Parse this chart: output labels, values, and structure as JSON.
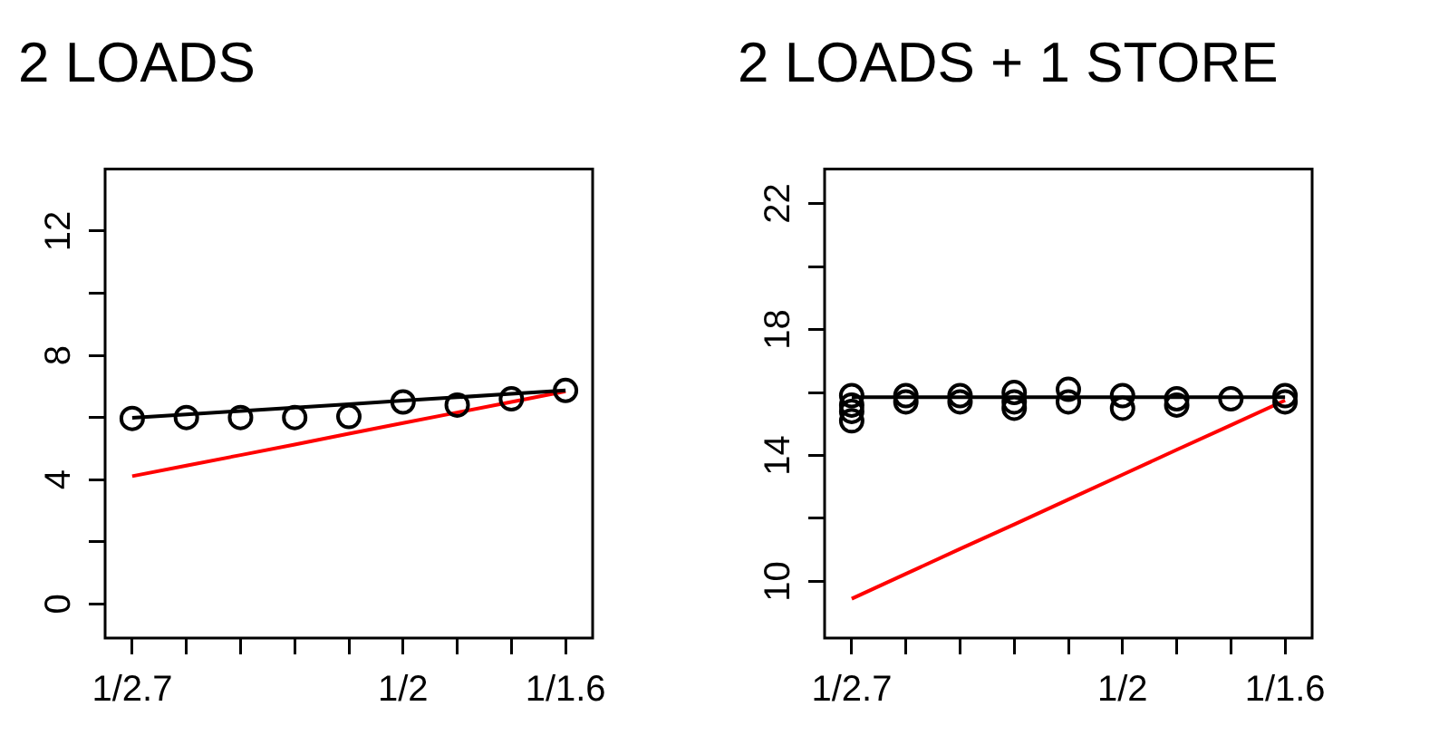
{
  "chart_data": [
    {
      "type": "scatter",
      "title": "2 LOADS",
      "categories": [
        "1/2.7",
        null,
        null,
        null,
        null,
        "1/2",
        null,
        null,
        "1/1.6"
      ],
      "ylim": [
        -1.1,
        14
      ],
      "marker": "circle",
      "legend": false,
      "grid": false,
      "yticks": [
        0,
        {
          "value": 2,
          "label": null
        },
        4,
        {
          "value": 6,
          "label": null
        },
        8,
        {
          "value": 10,
          "label": null
        },
        12
      ],
      "series": [
        {
          "type": "scatter",
          "color": "#000000",
          "values": [
            5.97,
            6.0,
            6.0,
            6.0,
            6.03,
            6.5,
            6.4,
            6.6,
            6.87
          ]
        },
        {
          "type": "line",
          "marker": "none",
          "color": "#000000",
          "values": [
            5.99,
            6.1,
            6.21,
            6.32,
            6.43,
            6.54,
            6.65,
            6.76,
            6.87
          ]
        },
        {
          "type": "line",
          "marker": "none",
          "color": "#ff0000",
          "values": [
            4.11,
            4.45,
            4.79,
            5.13,
            5.48,
            5.82,
            6.16,
            6.5,
            6.84
          ]
        }
      ]
    },
    {
      "type": "scatter",
      "title": "2 LOADS + 1 STORE",
      "categories": [
        "1/2.7",
        null,
        null,
        null,
        null,
        "1/2",
        null,
        null,
        "1/1.6"
      ],
      "ylim": [
        8.2,
        23.1
      ],
      "marker": "circle",
      "legend": false,
      "grid": false,
      "yticks": [
        10,
        {
          "value": 12,
          "label": null
        },
        14,
        {
          "value": 16,
          "label": null
        },
        18,
        {
          "value": 20,
          "label": null
        },
        22
      ],
      "series": [
        {
          "type": "scatter",
          "color": "#000000",
          "values": [
            15.9,
            15.9,
            15.9,
            16.0,
            16.1,
            15.9,
            15.8,
            15.8,
            15.9
          ]
        },
        {
          "type": "scatter",
          "color": "#000000",
          "values": [
            15.6,
            15.7,
            15.7,
            15.7,
            15.7,
            15.5,
            15.6,
            null,
            15.7
          ]
        },
        {
          "type": "scatter",
          "color": "#000000",
          "values": [
            15.4,
            null,
            null,
            15.5,
            null,
            null,
            null,
            null,
            null
          ]
        },
        {
          "type": "scatter",
          "color": "#000000",
          "values": [
            15.1,
            null,
            null,
            null,
            null,
            null,
            null,
            null,
            null
          ]
        },
        {
          "type": "line",
          "marker": "none",
          "color": "#000000",
          "values": [
            15.85,
            15.85,
            15.85,
            15.85,
            15.85,
            15.85,
            15.85,
            15.85,
            15.85
          ]
        },
        {
          "type": "line",
          "marker": "none",
          "color": "#ff0000",
          "values": [
            9.45,
            10.24,
            11.03,
            11.81,
            12.6,
            13.39,
            14.18,
            14.96,
            15.75
          ]
        }
      ]
    }
  ]
}
